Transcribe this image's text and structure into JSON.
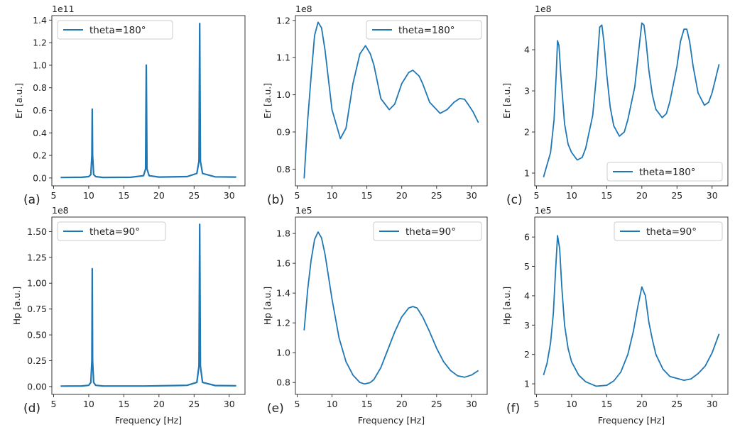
{
  "chart_data": [
    {
      "id": "a",
      "type": "line",
      "panel_label": "(a)",
      "ylabel": "Er [a.u.]",
      "xlabel": "",
      "offset_label": "1e11",
      "legend": "theta=180°",
      "legend_loc": "upper-left",
      "xlim": [
        4.75,
        32.25
      ],
      "ylim": [
        -0.07,
        1.44
      ],
      "xticks": [
        5,
        10,
        15,
        20,
        25,
        30
      ],
      "xtick_labels": [
        "5",
        "10",
        "15",
        "20",
        "25",
        "30"
      ],
      "yticks": [
        0,
        0.2,
        0.4,
        0.6,
        0.8,
        1.0,
        1.2,
        1.4
      ],
      "ytick_labels": [
        "0.0",
        "0.2",
        "0.4",
        "0.6",
        "0.8",
        "1.0",
        "1.2",
        "1.4"
      ],
      "x": [
        6,
        9,
        10,
        10.3,
        10.45,
        10.5,
        10.55,
        10.7,
        11,
        12,
        16,
        17.8,
        18.1,
        18.2,
        18.3,
        18.6,
        20,
        24,
        25.4,
        25.7,
        25.8,
        25.9,
        26.2,
        28,
        31
      ],
      "y": [
        0.004,
        0.006,
        0.012,
        0.03,
        0.2,
        0.61,
        0.2,
        0.03,
        0.012,
        0.005,
        0.006,
        0.02,
        0.08,
        1.0,
        0.08,
        0.02,
        0.008,
        0.012,
        0.04,
        0.15,
        1.37,
        0.15,
        0.04,
        0.01,
        0.008
      ]
    },
    {
      "id": "b",
      "type": "line",
      "panel_label": "(b)",
      "ylabel": "Er [a.u.]",
      "xlabel": "",
      "offset_label": "1e8",
      "legend": "theta=180°",
      "legend_loc": "upper-right",
      "xlim": [
        4.75,
        32.25
      ],
      "ylim": [
        0.755,
        1.213
      ],
      "xticks": [
        5,
        10,
        15,
        20,
        25,
        30
      ],
      "xtick_labels": [
        "5",
        "10",
        "15",
        "20",
        "25",
        "30"
      ],
      "yticks": [
        0.8,
        0.9,
        1.0,
        1.1,
        1.2
      ],
      "ytick_labels": [
        "0.8",
        "0.9",
        "1.0",
        "1.1",
        "1.2"
      ],
      "x": [
        6,
        6.5,
        7,
        7.5,
        8,
        8.5,
        9,
        10,
        11.2,
        12,
        13,
        14,
        14.8,
        15.5,
        16,
        17,
        18.2,
        19,
        20,
        21,
        21.6,
        22.5,
        23,
        24,
        25.5,
        26.5,
        27.5,
        28.3,
        29,
        29.5,
        30.2,
        31
      ],
      "y": [
        0.775,
        0.93,
        1.05,
        1.16,
        1.195,
        1.18,
        1.12,
        0.96,
        0.882,
        0.91,
        1.03,
        1.11,
        1.132,
        1.11,
        1.08,
        0.99,
        0.96,
        0.975,
        1.03,
        1.06,
        1.066,
        1.05,
        1.03,
        0.98,
        0.95,
        0.96,
        0.98,
        0.99,
        0.988,
        0.975,
        0.955,
        0.925
      ]
    },
    {
      "id": "c",
      "type": "line",
      "panel_label": "(c)",
      "ylabel": "Er [a.u.]",
      "xlabel": "",
      "offset_label": "1e8",
      "legend": "theta=180°",
      "legend_loc": "lower-right",
      "xlim": [
        4.75,
        32.25
      ],
      "ylim": [
        0.69,
        4.83
      ],
      "xticks": [
        5,
        10,
        15,
        20,
        25,
        30
      ],
      "xtick_labels": [
        "5",
        "10",
        "15",
        "20",
        "25",
        "30"
      ],
      "yticks": [
        1,
        2,
        3,
        4
      ],
      "ytick_labels": [
        "1",
        "2",
        "3",
        "4"
      ],
      "x": [
        6,
        6.5,
        7,
        7.5,
        7.8,
        8,
        8.2,
        8.5,
        9,
        9.5,
        10,
        10.8,
        11.5,
        12,
        13,
        13.5,
        14,
        14.3,
        14.6,
        15,
        15.5,
        16,
        16.8,
        17.5,
        18,
        19,
        19.5,
        20,
        20.3,
        20.6,
        21,
        21.5,
        22,
        22.9,
        23.5,
        24,
        25,
        25.5,
        26,
        26.4,
        26.8,
        27.3,
        28,
        28.9,
        29.5,
        30,
        30.5,
        31
      ],
      "y": [
        0.9,
        1.2,
        1.5,
        2.3,
        3.4,
        4.22,
        4.1,
        3.3,
        2.2,
        1.7,
        1.5,
        1.32,
        1.38,
        1.6,
        2.4,
        3.3,
        4.55,
        4.6,
        4.2,
        3.4,
        2.6,
        2.15,
        1.9,
        2.0,
        2.3,
        3.1,
        3.9,
        4.65,
        4.6,
        4.2,
        3.5,
        2.9,
        2.55,
        2.35,
        2.45,
        2.75,
        3.6,
        4.2,
        4.5,
        4.5,
        4.2,
        3.6,
        2.95,
        2.65,
        2.72,
        2.95,
        3.3,
        3.65
      ]
    },
    {
      "id": "d",
      "type": "line",
      "panel_label": "(d)",
      "ylabel": "Hp [a.u.]",
      "xlabel": "Frequency [Hz]",
      "offset_label": "1e8",
      "legend": "theta=90°",
      "legend_loc": "upper-left",
      "xlim": [
        4.75,
        32.25
      ],
      "ylim": [
        -0.076,
        1.64
      ],
      "xticks": [
        5,
        10,
        15,
        20,
        25,
        30
      ],
      "xtick_labels": [
        "5",
        "10",
        "15",
        "20",
        "25",
        "30"
      ],
      "yticks": [
        0,
        0.25,
        0.5,
        0.75,
        1.0,
        1.25,
        1.5
      ],
      "ytick_labels": [
        "0.00",
        "0.25",
        "0.50",
        "0.75",
        "1.00",
        "1.25",
        "1.50"
      ],
      "x": [
        6,
        9,
        10,
        10.3,
        10.45,
        10.5,
        10.55,
        10.7,
        11,
        12,
        18,
        24,
        25.4,
        25.7,
        25.8,
        25.9,
        26.2,
        28,
        31
      ],
      "y": [
        0.004,
        0.006,
        0.012,
        0.04,
        0.25,
        1.14,
        0.25,
        0.04,
        0.012,
        0.006,
        0.005,
        0.012,
        0.04,
        0.2,
        1.57,
        0.2,
        0.04,
        0.01,
        0.008
      ]
    },
    {
      "id": "e",
      "type": "line",
      "panel_label": "(e)",
      "ylabel": "Hp [a.u.]",
      "xlabel": "Frequency [Hz]",
      "offset_label": "1e5",
      "legend": "theta=90°",
      "legend_loc": "upper-right",
      "xlim": [
        4.75,
        32.25
      ],
      "ylim": [
        0.72,
        1.91
      ],
      "xticks": [
        5,
        10,
        15,
        20,
        25,
        30
      ],
      "xtick_labels": [
        "5",
        "10",
        "15",
        "20",
        "25",
        "30"
      ],
      "yticks": [
        0.8,
        1.0,
        1.2,
        1.4,
        1.6,
        1.8
      ],
      "ytick_labels": [
        "0.8",
        "1.0",
        "1.2",
        "1.4",
        "1.6",
        "1.8"
      ],
      "x": [
        6,
        6.5,
        7,
        7.5,
        8,
        8.5,
        9,
        10,
        11,
        12,
        13,
        14,
        14.7,
        15.5,
        16,
        17,
        18,
        19,
        20,
        21,
        21.6,
        22.2,
        23,
        24,
        25,
        26,
        27,
        28,
        29,
        30,
        31
      ],
      "y": [
        1.15,
        1.42,
        1.62,
        1.76,
        1.81,
        1.77,
        1.66,
        1.36,
        1.1,
        0.94,
        0.85,
        0.8,
        0.79,
        0.8,
        0.82,
        0.9,
        1.02,
        1.14,
        1.24,
        1.3,
        1.31,
        1.3,
        1.24,
        1.14,
        1.03,
        0.94,
        0.88,
        0.845,
        0.835,
        0.85,
        0.88
      ]
    },
    {
      "id": "f",
      "type": "line",
      "panel_label": "(f)",
      "ylabel": "Hp [a.u.]",
      "xlabel": "Frequency [Hz]",
      "offset_label": "1e5",
      "legend": "theta=90°",
      "legend_loc": "upper-right",
      "xlim": [
        4.75,
        32.25
      ],
      "ylim": [
        0.64,
        6.68
      ],
      "xticks": [
        5,
        10,
        15,
        20,
        25,
        30
      ],
      "xtick_labels": [
        "5",
        "10",
        "15",
        "20",
        "25",
        "30"
      ],
      "yticks": [
        1,
        2,
        3,
        4,
        5,
        6
      ],
      "ytick_labels": [
        "1",
        "2",
        "3",
        "4",
        "5",
        "6"
      ],
      "x": [
        6,
        6.5,
        7,
        7.4,
        7.7,
        8,
        8.3,
        8.6,
        9,
        9.5,
        10,
        11,
        12,
        13.5,
        15,
        16,
        17,
        18,
        18.8,
        19.4,
        20,
        20.5,
        21,
        21.5,
        22,
        23,
        24,
        26,
        27,
        28,
        29,
        30,
        31
      ],
      "y": [
        1.3,
        1.7,
        2.4,
        3.4,
        4.8,
        6.05,
        5.6,
        4.3,
        3.0,
        2.2,
        1.75,
        1.3,
        1.07,
        0.92,
        0.95,
        1.1,
        1.4,
        2.0,
        2.8,
        3.6,
        4.3,
        4.0,
        3.1,
        2.5,
        2.0,
        1.5,
        1.25,
        1.12,
        1.17,
        1.35,
        1.6,
        2.05,
        2.7
      ]
    }
  ],
  "colors": {
    "line": "#1f77b4",
    "axis": "#222222",
    "legend_border": "#cccccc"
  }
}
